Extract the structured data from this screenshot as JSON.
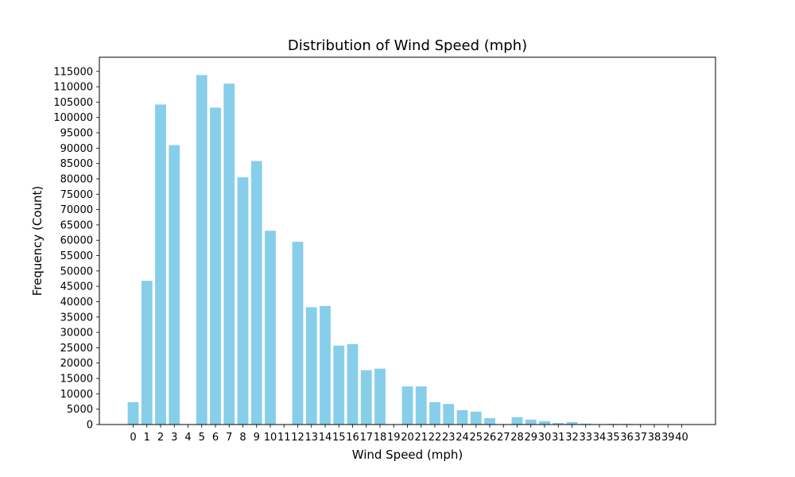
{
  "chart_data": {
    "type": "bar",
    "title": "Distribution of Wind Speed (mph)",
    "xlabel": "Wind Speed (mph)",
    "ylabel": "Frequency (Count)",
    "categories": [
      "0",
      "1",
      "2",
      "3",
      "4",
      "5",
      "6",
      "7",
      "8",
      "9",
      "10",
      "11",
      "12",
      "13",
      "14",
      "15",
      "16",
      "17",
      "18",
      "19",
      "20",
      "21",
      "22",
      "23",
      "24",
      "25",
      "26",
      "27",
      "28",
      "29",
      "30",
      "31",
      "32",
      "33",
      "34",
      "35",
      "36",
      "37",
      "38",
      "39",
      "40"
    ],
    "values": [
      7300,
      46800,
      104200,
      91000,
      0,
      113800,
      103200,
      111000,
      80500,
      85800,
      63100,
      0,
      59500,
      38200,
      38600,
      25700,
      26200,
      17700,
      18200,
      0,
      12400,
      12400,
      7300,
      6700,
      4700,
      4200,
      2100,
      0,
      2400,
      1600,
      1100,
      500,
      800,
      300,
      0,
      200,
      200,
      100,
      100,
      100,
      100
    ],
    "ylim": [
      0,
      119600
    ],
    "yticks": [
      0,
      5000,
      10000,
      15000,
      20000,
      25000,
      30000,
      35000,
      40000,
      45000,
      50000,
      55000,
      60000,
      65000,
      70000,
      75000,
      80000,
      85000,
      90000,
      95000,
      100000,
      105000,
      110000,
      115000
    ],
    "bar_color": "#87ceeb",
    "grid": false
  }
}
